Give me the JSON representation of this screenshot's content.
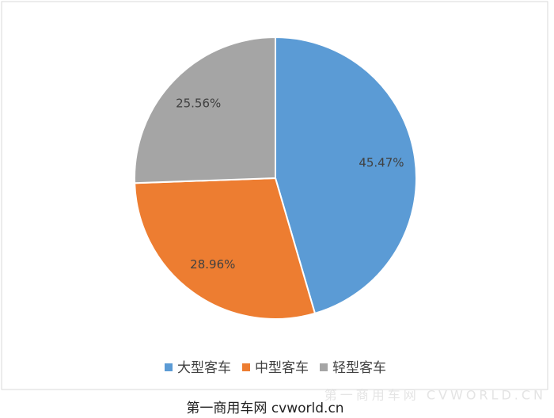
{
  "chart_data": {
    "type": "pie",
    "categories": [
      "大型客车",
      "中型客车",
      "轻型客车"
    ],
    "values": [
      45.47,
      28.96,
      25.56
    ],
    "value_labels": [
      "45.47%",
      "28.96%",
      "25.56%"
    ],
    "colors": [
      "#5b9bd5",
      "#ed7d31",
      "#a5a5a5"
    ],
    "legend": "bottom"
  },
  "caption": "第一商用车网 cvworld.cn",
  "watermark": "第一商用车网 CVWORLD.CN"
}
